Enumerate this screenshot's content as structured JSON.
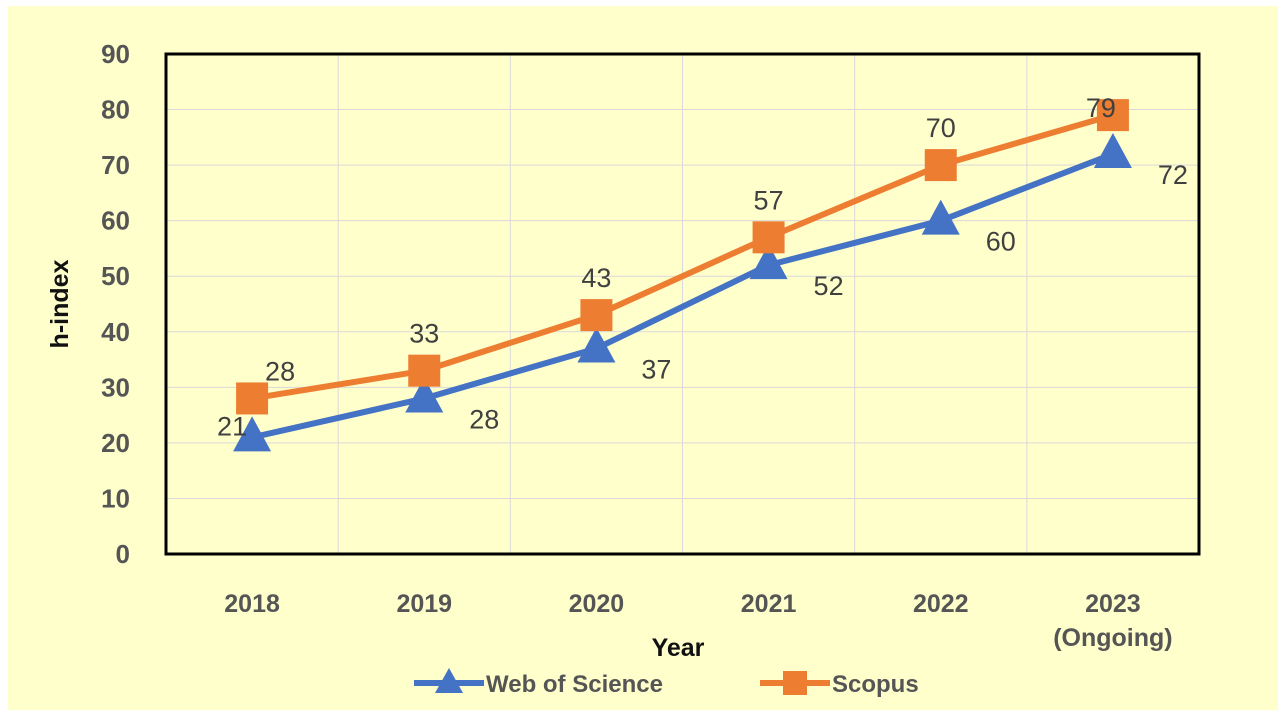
{
  "chart_data": {
    "type": "line",
    "title": "",
    "xlabel": "Year",
    "ylabel": "h-index",
    "categories": [
      [
        "2018"
      ],
      [
        "2019"
      ],
      [
        "2020"
      ],
      [
        "2021"
      ],
      [
        "2022"
      ],
      [
        "2023",
        "(Ongoing)"
      ]
    ],
    "ylim": [
      0,
      90
    ],
    "yticks": [
      0,
      10,
      20,
      30,
      40,
      50,
      60,
      70,
      80,
      90
    ],
    "grid": true,
    "legend_position": "bottom",
    "background_color": "#FFFFCC",
    "series": [
      {
        "name": "Web of Science",
        "values": [
          21,
          28,
          37,
          52,
          60,
          72
        ],
        "color": "#4472C4",
        "marker": "triangle"
      },
      {
        "name": "Scopus",
        "values": [
          28,
          33,
          43,
          57,
          70,
          79
        ],
        "color": "#ED7D31",
        "marker": "square"
      }
    ]
  }
}
